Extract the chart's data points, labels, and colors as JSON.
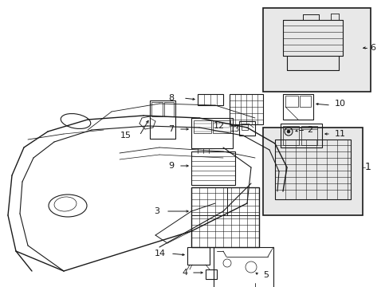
{
  "background_color": "#ffffff",
  "line_color": "#1a1a1a",
  "fig_width": 4.89,
  "fig_height": 3.6,
  "dpi": 100,
  "gray_fill": "#e8e8e8",
  "light_gray": "#f0f0f0"
}
